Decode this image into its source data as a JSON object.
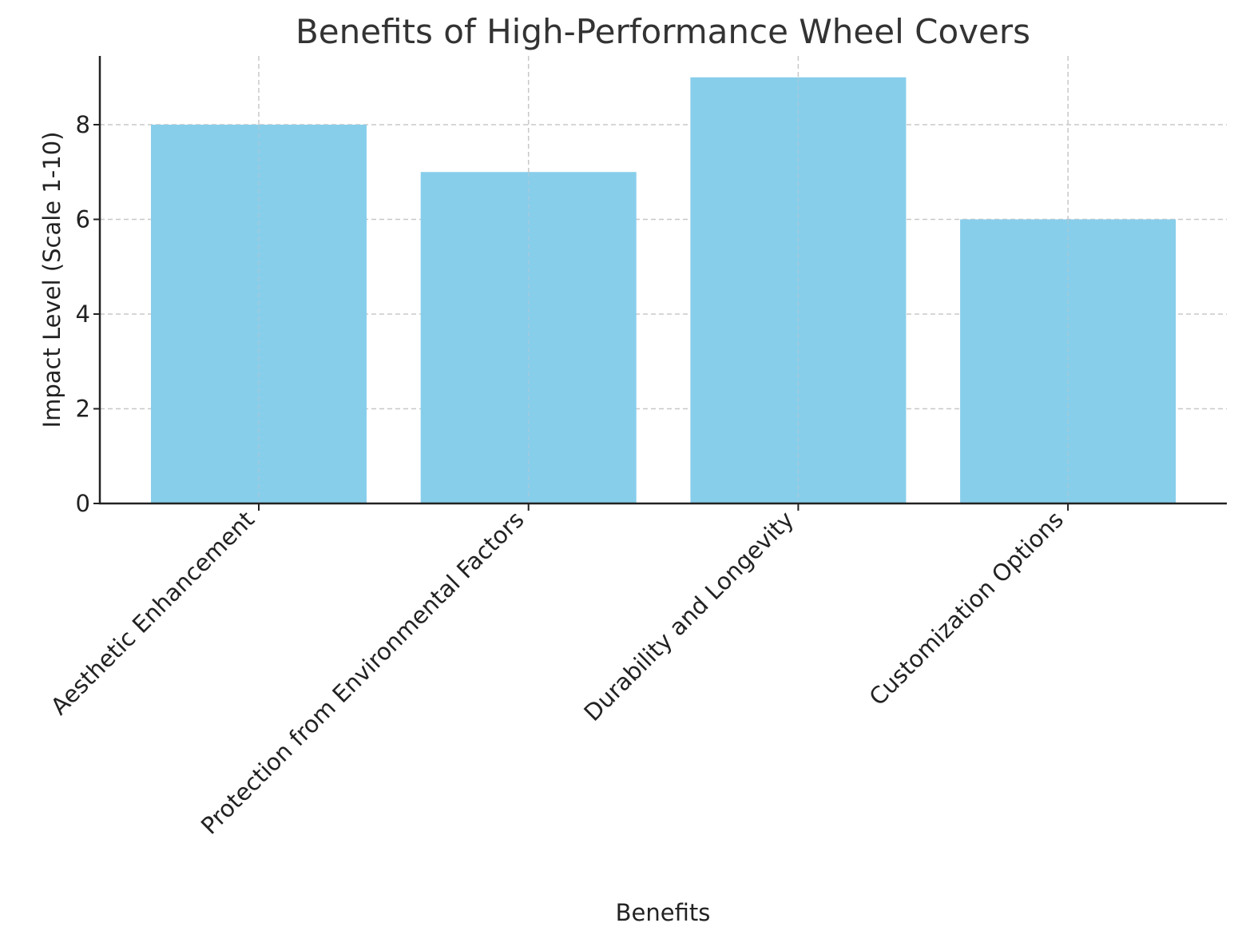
{
  "chart_data": {
    "type": "bar",
    "title": "Benefits of High-Performance Wheel Covers",
    "xlabel": "Benefits",
    "ylabel": "Impact Level (Scale 1-10)",
    "categories": [
      "Aesthetic Enhancement",
      "Protection from Environmental Factors",
      "Durability and Longevity",
      "Customization Options"
    ],
    "values": [
      8,
      7,
      9,
      6
    ],
    "ylim": [
      0,
      9.45
    ],
    "yticks": [
      "0",
      "2",
      "4",
      "6",
      "8"
    ],
    "grid": true,
    "bar_color": "#87CEEB",
    "legend": null
  }
}
